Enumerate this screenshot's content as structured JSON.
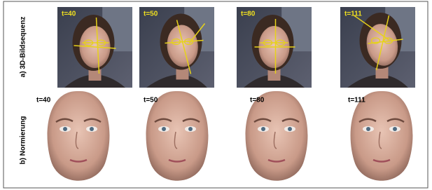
{
  "rows": [
    {
      "label": "a) 3D-Bildsequenz",
      "frames": [
        "t=40",
        "t=50",
        "t=80",
        "t=111"
      ]
    },
    {
      "label": "b) Normierung",
      "frames": [
        "t=40",
        "t=50",
        "t=80",
        "t=111"
      ]
    }
  ]
}
